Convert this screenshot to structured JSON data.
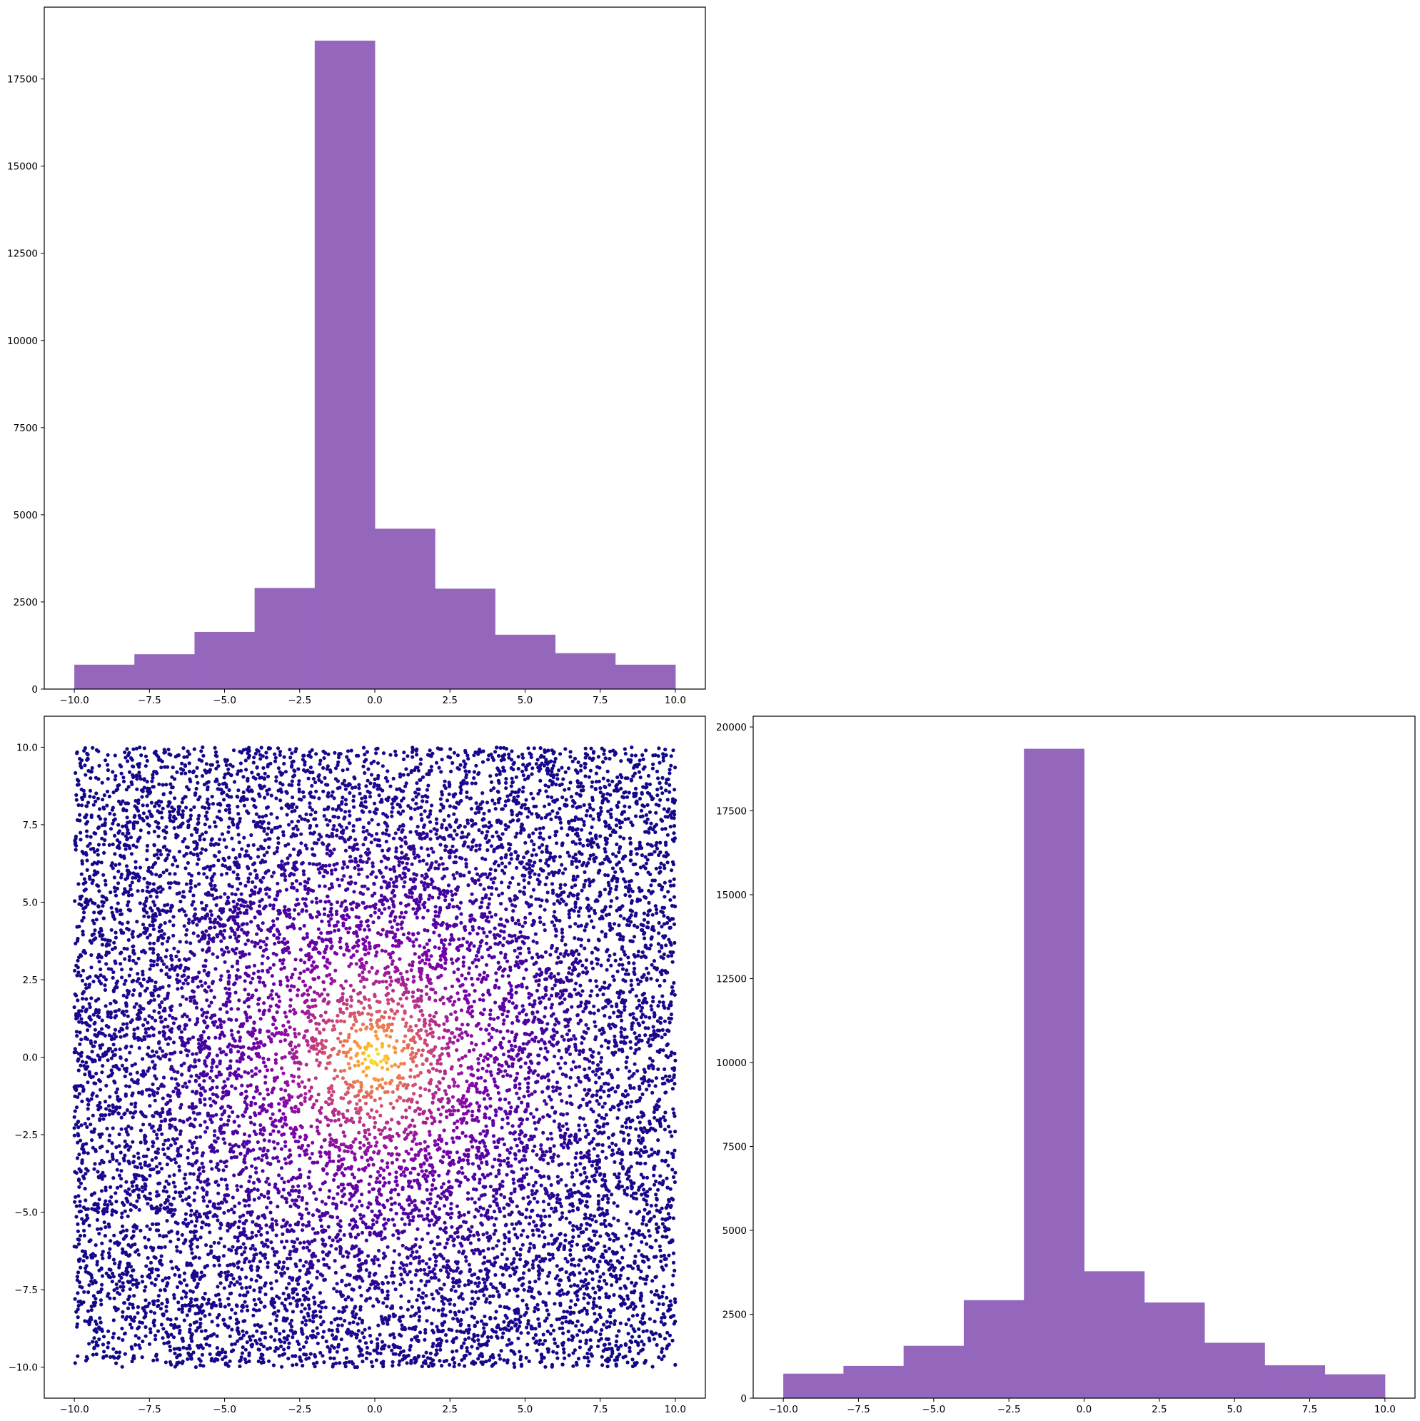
{
  "colors": {
    "bar_fill": "#9467bd",
    "scatter_colormap": "plasma",
    "axes_frame": "#000000",
    "background": "#ffffff"
  },
  "chart_data": [
    {
      "id": "top-left-histogram",
      "type": "bar",
      "bin_edges": [
        -10,
        -8,
        -6,
        -4,
        -2,
        0,
        2,
        4,
        6,
        8,
        10
      ],
      "values": [
        700,
        1000,
        1640,
        2900,
        18600,
        4600,
        2880,
        1560,
        1030,
        700
      ],
      "xlim": [
        -11,
        11
      ],
      "ylim": [
        0,
        19560
      ],
      "xticks": [
        -10,
        -7.5,
        -5,
        -2.5,
        0,
        2.5,
        5,
        7.5,
        10
      ],
      "xtick_labels": [
        "−10.0",
        "−7.5",
        "−5.0",
        "−2.5",
        "0.0",
        "2.5",
        "5.0",
        "7.5",
        "10.0"
      ],
      "yticks": [
        0,
        2500,
        5000,
        7500,
        10000,
        12500,
        15000,
        17500
      ],
      "ytick_labels": [
        "0",
        "2500",
        "5000",
        "7500",
        "10000",
        "12500",
        "15000",
        "17500"
      ],
      "grid": false,
      "title": "",
      "xlabel": "",
      "ylabel": ""
    },
    {
      "id": "bottom-left-scatter",
      "type": "scatter",
      "n_points": 12000,
      "x_range": [
        -10,
        10
      ],
      "y_range": [
        -10,
        10
      ],
      "color_encoding": "density, yellow peak at (0, 0)",
      "xlim": [
        -11,
        11
      ],
      "ylim": [
        -11,
        11
      ],
      "xticks": [
        -10,
        -7.5,
        -5,
        -2.5,
        0,
        2.5,
        5,
        7.5,
        10
      ],
      "xtick_labels": [
        "−10.0",
        "−7.5",
        "−5.0",
        "−2.5",
        "0.0",
        "2.5",
        "5.0",
        "7.5",
        "10.0"
      ],
      "yticks": [
        -10,
        -7.5,
        -5,
        -2.5,
        0,
        2.5,
        5,
        7.5,
        10
      ],
      "ytick_labels": [
        "−10.0",
        "−7.5",
        "−5.0",
        "−2.5",
        "0.0",
        "2.5",
        "5.0",
        "7.5",
        "10.0"
      ],
      "grid": false,
      "title": "",
      "xlabel": "",
      "ylabel": ""
    },
    {
      "id": "bottom-right-histogram",
      "type": "bar",
      "bin_edges": [
        -10,
        -8,
        -6,
        -4,
        -2,
        0,
        2,
        4,
        6,
        8,
        10
      ],
      "values": [
        730,
        960,
        1560,
        2920,
        19350,
        3780,
        2850,
        1650,
        980,
        710
      ],
      "xlim": [
        -11,
        11
      ],
      "ylim": [
        0,
        20320
      ],
      "xticks": [
        -10,
        -7.5,
        -5,
        -2.5,
        0,
        2.5,
        5,
        7.5,
        10
      ],
      "xtick_labels": [
        "−10.0",
        "−7.5",
        "−5.0",
        "−2.5",
        "0.0",
        "2.5",
        "5.0",
        "7.5",
        "10.0"
      ],
      "yticks": [
        0,
        2500,
        5000,
        7500,
        10000,
        12500,
        15000,
        17500,
        20000
      ],
      "ytick_labels": [
        "0",
        "2500",
        "5000",
        "7500",
        "10000",
        "12500",
        "15000",
        "17500",
        "20000"
      ],
      "grid": false,
      "title": "",
      "xlabel": "",
      "ylabel": ""
    }
  ]
}
